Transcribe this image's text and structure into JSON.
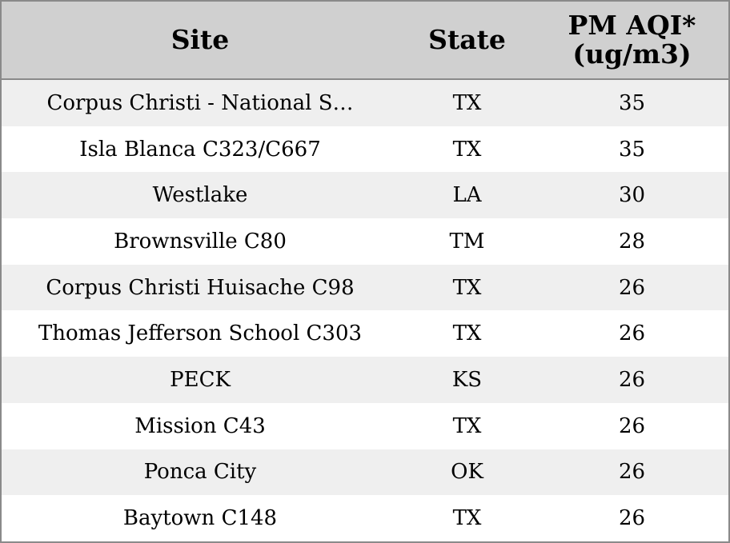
{
  "chart_data": {
    "type": "table",
    "columns": [
      "Site",
      "State",
      "PM AQI*\n(ug/m3)"
    ],
    "rows": [
      [
        "Corpus Christi - National S…",
        "TX",
        35
      ],
      [
        "Isla Blanca C323/C667",
        "TX",
        35
      ],
      [
        "Westlake",
        "LA",
        30
      ],
      [
        "Brownsville C80",
        "TM",
        28
      ],
      [
        "Corpus Christi Huisache C98",
        "TX",
        26
      ],
      [
        "Thomas Jefferson School C303",
        "TX",
        26
      ],
      [
        "PECK",
        "KS",
        26
      ],
      [
        "Mission C43",
        "TX",
        26
      ],
      [
        "Ponca City",
        "OK",
        26
      ],
      [
        "Baytown C148",
        "TX",
        26
      ]
    ]
  },
  "colors": {
    "header_bg": "#d0d0d0",
    "stripe_bg": "#efefef",
    "row_bg": "#ffffff",
    "border": "#8a8a8a"
  }
}
